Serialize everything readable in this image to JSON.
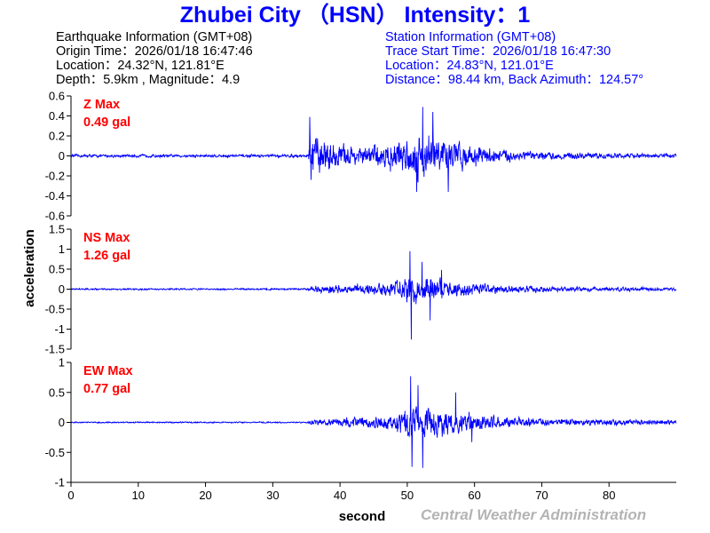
{
  "title": "Zhubei City （HSN） Intensity：1",
  "earthquake": {
    "heading": "Earthquake Information  (GMT+08)",
    "origin_time": "Origin Time：2026/01/18 16:47:46",
    "location": "Location：24.32°N, 121.81°E",
    "depth_mag": "Depth：5.9km , Magnitude：4.9"
  },
  "station": {
    "heading": "Station Information  (GMT+08)",
    "trace_start": "Trace Start Time：2026/01/18 16:47:30",
    "location": "Location：24.83°N, 121.01°E",
    "distance": "Distance：98.44 km, Back Azimuth：124.57°"
  },
  "colors": {
    "trace": "#0000ff",
    "label": "#ff0000",
    "title": "#0000ff",
    "credit": "#b4b4b4"
  },
  "credit": "Central Weather Administration",
  "chart_data": {
    "type": "line",
    "xlabel": "second",
    "ylabel": "acceleration",
    "xlim": [
      0,
      90
    ],
    "x_ticks": [
      0,
      10,
      20,
      30,
      40,
      50,
      60,
      70,
      80
    ],
    "grid": false,
    "panels": [
      {
        "name": "Z",
        "label_line1": "Z Max",
        "label_line2": "0.49 gal",
        "max_gal": 0.49,
        "ylim": [
          -0.6,
          0.6
        ],
        "y_ticks": [
          0.6,
          0.4,
          0.2,
          0,
          -0.2,
          -0.4,
          -0.6
        ],
        "y_tick_labels": [
          "0.6",
          "0.4",
          "0.2",
          "0",
          "-0.2",
          "-0.4",
          "-0.6"
        ],
        "envelope": [
          [
            0,
            0.02
          ],
          [
            35.3,
            0.02
          ],
          [
            35.6,
            0.35
          ],
          [
            37,
            0.24
          ],
          [
            40,
            0.16
          ],
          [
            43,
            0.12
          ],
          [
            46,
            0.16
          ],
          [
            49,
            0.22
          ],
          [
            51,
            0.28
          ],
          [
            53,
            0.32
          ],
          [
            55,
            0.26
          ],
          [
            57,
            0.2
          ],
          [
            60,
            0.14
          ],
          [
            64,
            0.09
          ],
          [
            68,
            0.06
          ],
          [
            72,
            0.045
          ],
          [
            80,
            0.035
          ],
          [
            90,
            0.03
          ]
        ],
        "peaks": [
          [
            35.5,
            0.39
          ],
          [
            35.7,
            -0.24
          ],
          [
            52.3,
            0.49
          ],
          [
            51.4,
            -0.36
          ],
          [
            53.8,
            0.44
          ],
          [
            56.1,
            -0.36
          ]
        ]
      },
      {
        "name": "NS",
        "label_line1": "NS Max",
        "label_line2": "1.26 gal",
        "max_gal": 1.26,
        "ylim": [
          -1.5,
          1.5
        ],
        "y_ticks": [
          1.5,
          1,
          0.5,
          0,
          -0.5,
          -1,
          -1.5
        ],
        "y_tick_labels": [
          "1.5",
          "1",
          "0.5",
          "0",
          "-0.5",
          "-1",
          "-1.5"
        ],
        "envelope": [
          [
            0,
            0.03
          ],
          [
            35,
            0.03
          ],
          [
            36,
            0.12
          ],
          [
            40,
            0.14
          ],
          [
            45,
            0.18
          ],
          [
            48,
            0.28
          ],
          [
            50,
            0.42
          ],
          [
            52,
            0.5
          ],
          [
            54,
            0.38
          ],
          [
            57,
            0.26
          ],
          [
            60,
            0.2
          ],
          [
            64,
            0.14
          ],
          [
            70,
            0.1
          ],
          [
            80,
            0.07
          ],
          [
            90,
            0.06
          ]
        ],
        "peaks": [
          [
            50.4,
            0.95
          ],
          [
            50.6,
            -1.26
          ],
          [
            52.2,
            0.68
          ],
          [
            53.4,
            -0.78
          ],
          [
            55.1,
            0.48
          ]
        ]
      },
      {
        "name": "EW",
        "label_line1": "EW Max",
        "label_line2": "0.77 gal",
        "max_gal": 0.77,
        "ylim": [
          -1,
          1
        ],
        "y_ticks": [
          1,
          0.5,
          0,
          -0.5,
          -1
        ],
        "y_tick_labels": [
          "1",
          "0.5",
          "0",
          "-0.5",
          "-1"
        ],
        "envelope": [
          [
            0,
            0.015
          ],
          [
            35,
            0.015
          ],
          [
            36,
            0.07
          ],
          [
            40,
            0.1
          ],
          [
            45,
            0.14
          ],
          [
            48,
            0.2
          ],
          [
            50,
            0.38
          ],
          [
            52,
            0.42
          ],
          [
            54,
            0.32
          ],
          [
            57,
            0.26
          ],
          [
            60,
            0.2
          ],
          [
            64,
            0.14
          ],
          [
            70,
            0.09
          ],
          [
            80,
            0.06
          ],
          [
            90,
            0.05
          ]
        ],
        "peaks": [
          [
            50.5,
            0.77
          ],
          [
            50.7,
            -0.74
          ],
          [
            51.6,
            0.62
          ],
          [
            52.3,
            -0.76
          ],
          [
            57.2,
            0.5
          ],
          [
            59.6,
            -0.33
          ]
        ]
      }
    ]
  }
}
